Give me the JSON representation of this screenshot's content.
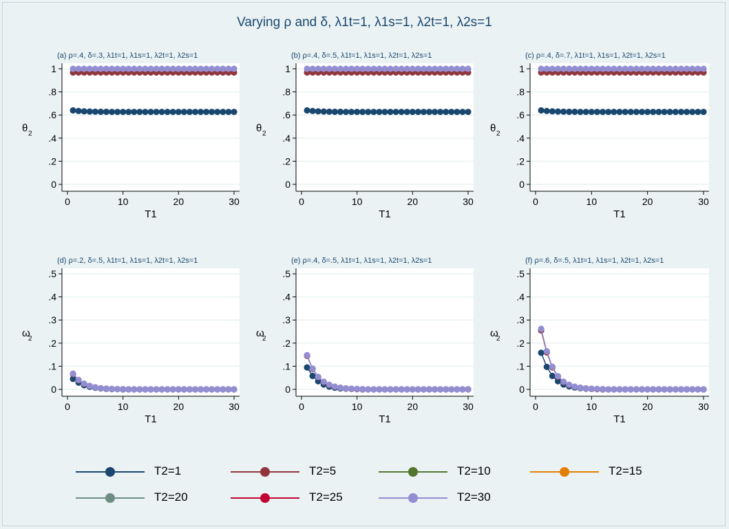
{
  "title": "Varying ρ and δ, λ1t=1, λ1s=1, λ2t=1, λ2s=1",
  "chart_data": [
    {
      "type": "scatter",
      "title": "(a) ρ=.4, δ=.3, λ1t=1, λ1s=1, λ2t=1, λ2s=1",
      "xlabel": "T1",
      "ylabel": "θ2",
      "ylabel_main": "θ",
      "ylabel_sub": "2",
      "xlim": [
        0,
        30
      ],
      "xticks": [
        0,
        10,
        20,
        30
      ],
      "ylim": [
        0,
        1
      ],
      "yticks": [
        0,
        0.2,
        0.4,
        0.6,
        0.8,
        1
      ],
      "yticklabels": [
        "0",
        ".2",
        ".4",
        ".6",
        ".8",
        "1"
      ],
      "grid": true,
      "x": [
        1,
        2,
        3,
        4,
        5,
        6,
        7,
        8,
        9,
        10,
        11,
        12,
        13,
        14,
        15,
        16,
        17,
        18,
        19,
        20,
        21,
        22,
        23,
        24,
        25,
        26,
        27,
        28,
        29,
        30
      ],
      "series": [
        {
          "name": "T2=1",
          "values": [
            0.64,
            0.635,
            0.632,
            0.63,
            0.629,
            0.628,
            0.628,
            0.627,
            0.627,
            0.627,
            0.627,
            0.627,
            0.627,
            0.627,
            0.627,
            0.627,
            0.627,
            0.627,
            0.627,
            0.627,
            0.627,
            0.627,
            0.627,
            0.627,
            0.627,
            0.627,
            0.627,
            0.627,
            0.627,
            0.627
          ]
        },
        {
          "name": "T2=5",
          "values": [
            0.968,
            0.968,
            0.968,
            0.968,
            0.968,
            0.968,
            0.968,
            0.968,
            0.968,
            0.968,
            0.968,
            0.968,
            0.968,
            0.968,
            0.968,
            0.968,
            0.968,
            0.968,
            0.968,
            0.968,
            0.968,
            0.968,
            0.968,
            0.968,
            0.968,
            0.968,
            0.968,
            0.968,
            0.968,
            0.968
          ]
        },
        {
          "name": "T2=30",
          "values": [
            1,
            1,
            1,
            1,
            1,
            1,
            1,
            1,
            1,
            1,
            1,
            1,
            1,
            1,
            1,
            1,
            1,
            1,
            1,
            1,
            1,
            1,
            1,
            1,
            1,
            1,
            1,
            1,
            1,
            1
          ]
        }
      ]
    },
    {
      "type": "scatter",
      "title": "(b) ρ=.4, δ=.5, λ1t=1, λ1s=1, λ2t=1, λ2s=1",
      "xlabel": "T1",
      "ylabel": "θ2",
      "ylabel_main": "θ",
      "ylabel_sub": "2",
      "xlim": [
        0,
        30
      ],
      "xticks": [
        0,
        10,
        20,
        30
      ],
      "ylim": [
        0,
        1
      ],
      "yticks": [
        0,
        0.2,
        0.4,
        0.6,
        0.8,
        1
      ],
      "yticklabels": [
        "0",
        ".2",
        ".4",
        ".6",
        ".8",
        "1"
      ],
      "grid": true,
      "x": [
        1,
        2,
        3,
        4,
        5,
        6,
        7,
        8,
        9,
        10,
        11,
        12,
        13,
        14,
        15,
        16,
        17,
        18,
        19,
        20,
        21,
        22,
        23,
        24,
        25,
        26,
        27,
        28,
        29,
        30
      ],
      "series": [
        {
          "name": "T2=1",
          "values": [
            0.64,
            0.635,
            0.632,
            0.63,
            0.629,
            0.628,
            0.628,
            0.627,
            0.627,
            0.627,
            0.627,
            0.627,
            0.627,
            0.627,
            0.627,
            0.627,
            0.627,
            0.627,
            0.627,
            0.627,
            0.627,
            0.627,
            0.627,
            0.627,
            0.627,
            0.627,
            0.627,
            0.627,
            0.627,
            0.627
          ]
        },
        {
          "name": "T2=5",
          "values": [
            0.968,
            0.968,
            0.968,
            0.968,
            0.968,
            0.968,
            0.968,
            0.968,
            0.968,
            0.968,
            0.968,
            0.968,
            0.968,
            0.968,
            0.968,
            0.968,
            0.968,
            0.968,
            0.968,
            0.968,
            0.968,
            0.968,
            0.968,
            0.968,
            0.968,
            0.968,
            0.968,
            0.968,
            0.968,
            0.968
          ]
        },
        {
          "name": "T2=30",
          "values": [
            1,
            1,
            1,
            1,
            1,
            1,
            1,
            1,
            1,
            1,
            1,
            1,
            1,
            1,
            1,
            1,
            1,
            1,
            1,
            1,
            1,
            1,
            1,
            1,
            1,
            1,
            1,
            1,
            1,
            1
          ]
        }
      ]
    },
    {
      "type": "scatter",
      "title": "(c) ρ=.4, δ=.7, λ1t=1, λ1s=1, λ2t=1, λ2s=1",
      "xlabel": "T1",
      "ylabel": "θ2",
      "ylabel_main": "θ",
      "ylabel_sub": "2",
      "xlim": [
        0,
        30
      ],
      "xticks": [
        0,
        10,
        20,
        30
      ],
      "ylim": [
        0,
        1
      ],
      "yticks": [
        0,
        0.2,
        0.4,
        0.6,
        0.8,
        1
      ],
      "yticklabels": [
        "0",
        ".2",
        ".4",
        ".6",
        ".8",
        "1"
      ],
      "grid": true,
      "x": [
        1,
        2,
        3,
        4,
        5,
        6,
        7,
        8,
        9,
        10,
        11,
        12,
        13,
        14,
        15,
        16,
        17,
        18,
        19,
        20,
        21,
        22,
        23,
        24,
        25,
        26,
        27,
        28,
        29,
        30
      ],
      "series": [
        {
          "name": "T2=1",
          "values": [
            0.64,
            0.635,
            0.632,
            0.63,
            0.629,
            0.628,
            0.628,
            0.627,
            0.627,
            0.627,
            0.627,
            0.627,
            0.627,
            0.627,
            0.627,
            0.627,
            0.627,
            0.627,
            0.627,
            0.627,
            0.627,
            0.627,
            0.627,
            0.627,
            0.627,
            0.627,
            0.627,
            0.627,
            0.627,
            0.627
          ]
        },
        {
          "name": "T2=5",
          "values": [
            0.968,
            0.968,
            0.968,
            0.968,
            0.968,
            0.968,
            0.968,
            0.968,
            0.968,
            0.968,
            0.968,
            0.968,
            0.968,
            0.968,
            0.968,
            0.968,
            0.968,
            0.968,
            0.968,
            0.968,
            0.968,
            0.968,
            0.968,
            0.968,
            0.968,
            0.968,
            0.968,
            0.968,
            0.968,
            0.968
          ]
        },
        {
          "name": "T2=30",
          "values": [
            1,
            1,
            1,
            1,
            1,
            1,
            1,
            1,
            1,
            1,
            1,
            1,
            1,
            1,
            1,
            1,
            1,
            1,
            1,
            1,
            1,
            1,
            1,
            1,
            1,
            1,
            1,
            1,
            1,
            1
          ]
        }
      ]
    },
    {
      "type": "line",
      "title": "(d) ρ=.2, δ=.5, λ1t=1, λ1s=1, λ2t=1, λ2s=1",
      "xlabel": "T1",
      "ylabel": "ω2",
      "ylabel_main": "ω",
      "ylabel_sub": "2",
      "xlim": [
        0,
        30
      ],
      "xticks": [
        0,
        10,
        20,
        30
      ],
      "ylim": [
        0,
        0.5
      ],
      "yticks": [
        0,
        0.1,
        0.2,
        0.3,
        0.4,
        0.5
      ],
      "yticklabels": [
        "0",
        ".1",
        ".2",
        ".3",
        ".4",
        ".5"
      ],
      "grid": true,
      "x": [
        1,
        2,
        3,
        4,
        5,
        6,
        7,
        8,
        9,
        10,
        11,
        12,
        13,
        14,
        15,
        16,
        17,
        18,
        19,
        20,
        21,
        22,
        23,
        24,
        25,
        26,
        27,
        28,
        29,
        30
      ],
      "series": [
        {
          "name": "T2=1",
          "values": [
            0.045,
            0.029,
            0.018,
            0.011,
            0.007,
            0.004,
            0.002,
            0.001,
            0.001,
            0,
            0,
            0,
            0,
            0,
            0,
            0,
            0,
            0,
            0,
            0,
            0,
            0,
            0,
            0,
            0,
            0,
            0,
            0,
            0,
            0
          ]
        },
        {
          "name": "T2=5",
          "values": [
            0.066,
            0.04,
            0.024,
            0.015,
            0.009,
            0.005,
            0.003,
            0.002,
            0.001,
            0.001,
            0,
            0,
            0,
            0,
            0,
            0,
            0,
            0,
            0,
            0,
            0,
            0,
            0,
            0,
            0,
            0,
            0,
            0,
            0,
            0
          ]
        },
        {
          "name": "T2=30",
          "values": [
            0.068,
            0.041,
            0.025,
            0.015,
            0.009,
            0.005,
            0.003,
            0.002,
            0.001,
            0.001,
            0,
            0,
            0,
            0,
            0,
            0,
            0,
            0,
            0,
            0,
            0,
            0,
            0,
            0,
            0,
            0,
            0,
            0,
            0,
            0
          ]
        }
      ]
    },
    {
      "type": "line",
      "title": "(e) ρ=.4, δ=.5, λ1t=1, λ1s=1, λ2t=1, λ2s=1",
      "xlabel": "T1",
      "ylabel": "ω2",
      "ylabel_main": "ω",
      "ylabel_sub": "2",
      "xlim": [
        0,
        30
      ],
      "xticks": [
        0,
        10,
        20,
        30
      ],
      "ylim": [
        0,
        0.5
      ],
      "yticks": [
        0,
        0.1,
        0.2,
        0.3,
        0.4,
        0.5
      ],
      "yticklabels": [
        "0",
        ".1",
        ".2",
        ".3",
        ".4",
        ".5"
      ],
      "grid": true,
      "x": [
        1,
        2,
        3,
        4,
        5,
        6,
        7,
        8,
        9,
        10,
        11,
        12,
        13,
        14,
        15,
        16,
        17,
        18,
        19,
        20,
        21,
        22,
        23,
        24,
        25,
        26,
        27,
        28,
        29,
        30
      ],
      "series": [
        {
          "name": "T2=1",
          "values": [
            0.095,
            0.058,
            0.035,
            0.021,
            0.012,
            0.007,
            0.004,
            0.003,
            0.002,
            0.001,
            0,
            0,
            0,
            0,
            0,
            0,
            0,
            0,
            0,
            0,
            0,
            0,
            0,
            0,
            0,
            0,
            0,
            0,
            0,
            0
          ]
        },
        {
          "name": "T2=5",
          "values": [
            0.145,
            0.088,
            0.053,
            0.032,
            0.019,
            0.011,
            0.007,
            0.004,
            0.002,
            0.001,
            0.001,
            0,
            0,
            0,
            0,
            0,
            0,
            0,
            0,
            0,
            0,
            0,
            0,
            0,
            0,
            0,
            0,
            0,
            0,
            0
          ]
        },
        {
          "name": "T2=30",
          "values": [
            0.148,
            0.09,
            0.054,
            0.033,
            0.02,
            0.012,
            0.007,
            0.004,
            0.003,
            0.002,
            0.001,
            0,
            0,
            0,
            0,
            0,
            0,
            0,
            0,
            0,
            0,
            0,
            0,
            0,
            0,
            0,
            0,
            0,
            0,
            0
          ]
        }
      ]
    },
    {
      "type": "line",
      "title": "(f) ρ=.6, δ=.5, λ1t=1, λ1s=1, λ2t=1, λ2s=1",
      "xlabel": "T1",
      "ylabel": "ω2",
      "ylabel_main": "ω",
      "ylabel_sub": "2",
      "xlim": [
        0,
        30
      ],
      "xticks": [
        0,
        10,
        20,
        30
      ],
      "ylim": [
        0,
        0.5
      ],
      "yticks": [
        0,
        0.1,
        0.2,
        0.3,
        0.4,
        0.5
      ],
      "yticklabels": [
        "0",
        ".1",
        ".2",
        ".3",
        ".4",
        ".5"
      ],
      "grid": true,
      "x": [
        1,
        2,
        3,
        4,
        5,
        6,
        7,
        8,
        9,
        10,
        11,
        12,
        13,
        14,
        15,
        16,
        17,
        18,
        19,
        20,
        21,
        22,
        23,
        24,
        25,
        26,
        27,
        28,
        29,
        30
      ],
      "series": [
        {
          "name": "T2=1",
          "values": [
            0.158,
            0.097,
            0.058,
            0.035,
            0.021,
            0.013,
            0.008,
            0.005,
            0.003,
            0.002,
            0.001,
            0,
            0,
            0,
            0,
            0,
            0,
            0,
            0,
            0,
            0,
            0,
            0,
            0,
            0,
            0,
            0,
            0,
            0,
            0
          ]
        },
        {
          "name": "T2=5",
          "values": [
            0.255,
            0.16,
            0.095,
            0.055,
            0.032,
            0.019,
            0.011,
            0.007,
            0.004,
            0.002,
            0.001,
            0.001,
            0,
            0,
            0,
            0,
            0,
            0,
            0,
            0,
            0,
            0,
            0,
            0,
            0,
            0,
            0,
            0,
            0,
            0
          ]
        },
        {
          "name": "T2=30",
          "values": [
            0.262,
            0.165,
            0.098,
            0.057,
            0.033,
            0.02,
            0.012,
            0.007,
            0.004,
            0.003,
            0.002,
            0.001,
            0,
            0,
            0,
            0,
            0,
            0,
            0,
            0,
            0,
            0,
            0,
            0,
            0,
            0,
            0,
            0,
            0,
            0
          ]
        }
      ]
    }
  ],
  "legend": {
    "placement": "bottom",
    "items": [
      {
        "label": "T2=1",
        "color": "#1a476f"
      },
      {
        "label": "T2=5",
        "color": "#90353b"
      },
      {
        "label": "T2=10",
        "color": "#55752f"
      },
      {
        "label": "T2=15",
        "color": "#e37e00"
      },
      {
        "label": "T2=20",
        "color": "#6e8e84"
      },
      {
        "label": "T2=25",
        "color": "#c10534"
      },
      {
        "label": "T2=30",
        "color": "#938dd2"
      }
    ]
  },
  "colors": {
    "background": "#eaf2f3",
    "plot_background": "#ffffff",
    "grid": "#eaf2f3",
    "title": "#1a476f"
  }
}
